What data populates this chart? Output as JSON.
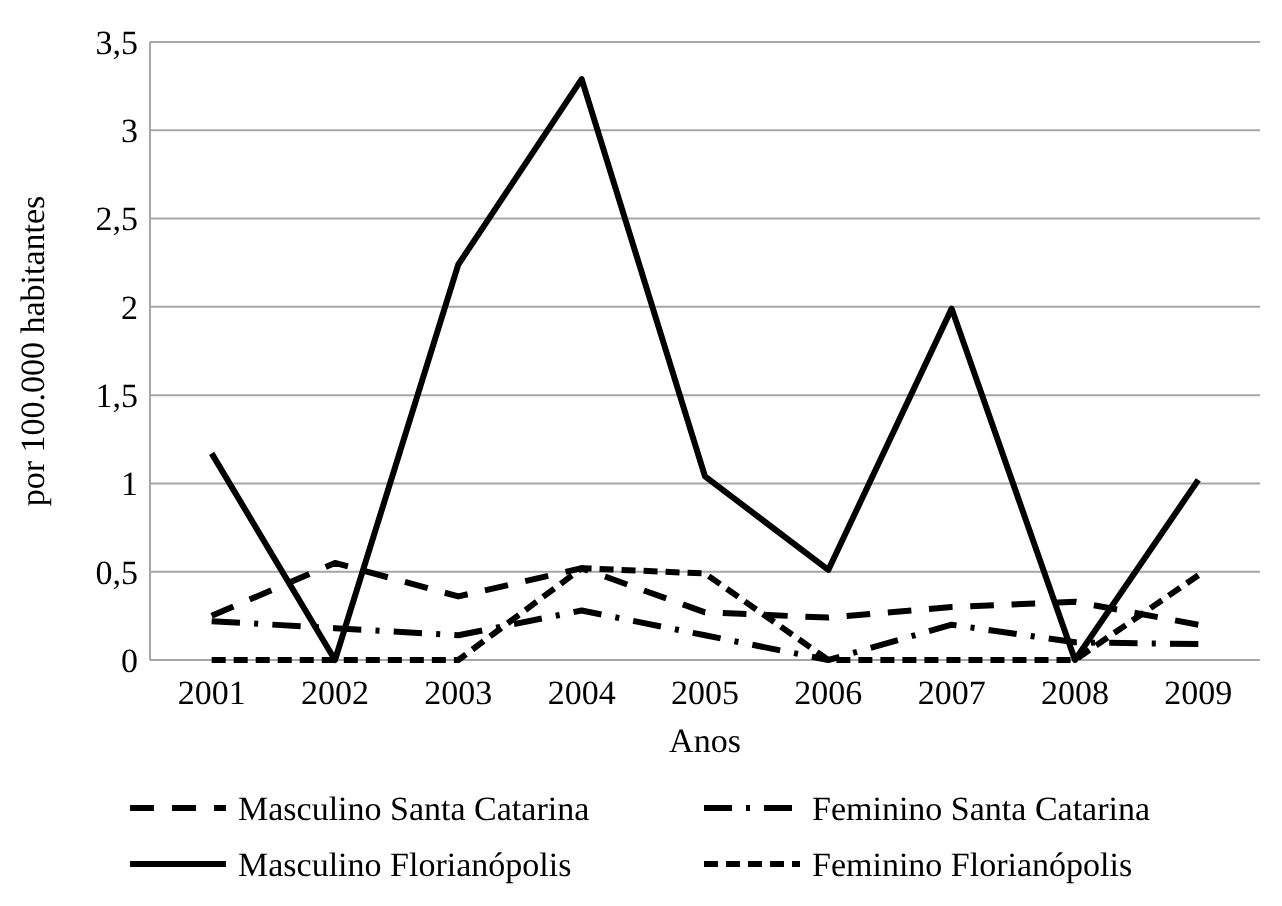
{
  "chart_data": {
    "type": "line",
    "xlabel": "Anos",
    "ylabel": "por 100.000 habitantes",
    "categories": [
      "2001",
      "2002",
      "2003",
      "2004",
      "2005",
      "2006",
      "2007",
      "2008",
      "2009"
    ],
    "series": [
      {
        "name": "Masculino Santa Catarina",
        "color": "#000000",
        "line_style": "dashed",
        "values": [
          0.25,
          0.55,
          0.36,
          0.52,
          0.27,
          0.24,
          0.3,
          0.33,
          0.2
        ]
      },
      {
        "name": "Feminino Santa Catarina",
        "color": "#000000",
        "line_style": "dashdot",
        "values": [
          0.22,
          0.18,
          0.14,
          0.28,
          0.14,
          0,
          0.2,
          0.1,
          0.09
        ]
      },
      {
        "name": "Masculino Florianópolis",
        "color": "#000000",
        "line_style": "solid",
        "values": [
          1.17,
          0,
          2.24,
          3.29,
          1.04,
          0.51,
          1.99,
          0,
          1.02
        ]
      },
      {
        "name": "Feminino Florianópolis",
        "color": "#000000",
        "line_style": "dotted",
        "values": [
          0,
          0,
          0,
          0.52,
          0.49,
          0,
          0,
          0,
          0.48
        ]
      }
    ],
    "ylim": [
      0,
      3.5
    ],
    "yticks": [
      {
        "value": 0,
        "label": "0"
      },
      {
        "value": 0.5,
        "label": "0,5"
      },
      {
        "value": 1,
        "label": "1"
      },
      {
        "value": 1.5,
        "label": "1,5"
      },
      {
        "value": 2,
        "label": "2"
      },
      {
        "value": 2.5,
        "label": "2,5"
      },
      {
        "value": 3,
        "label": "3"
      },
      {
        "value": 3.5,
        "label": "3,5"
      }
    ],
    "grid": "y",
    "legend": "bottom",
    "marker": "none"
  }
}
